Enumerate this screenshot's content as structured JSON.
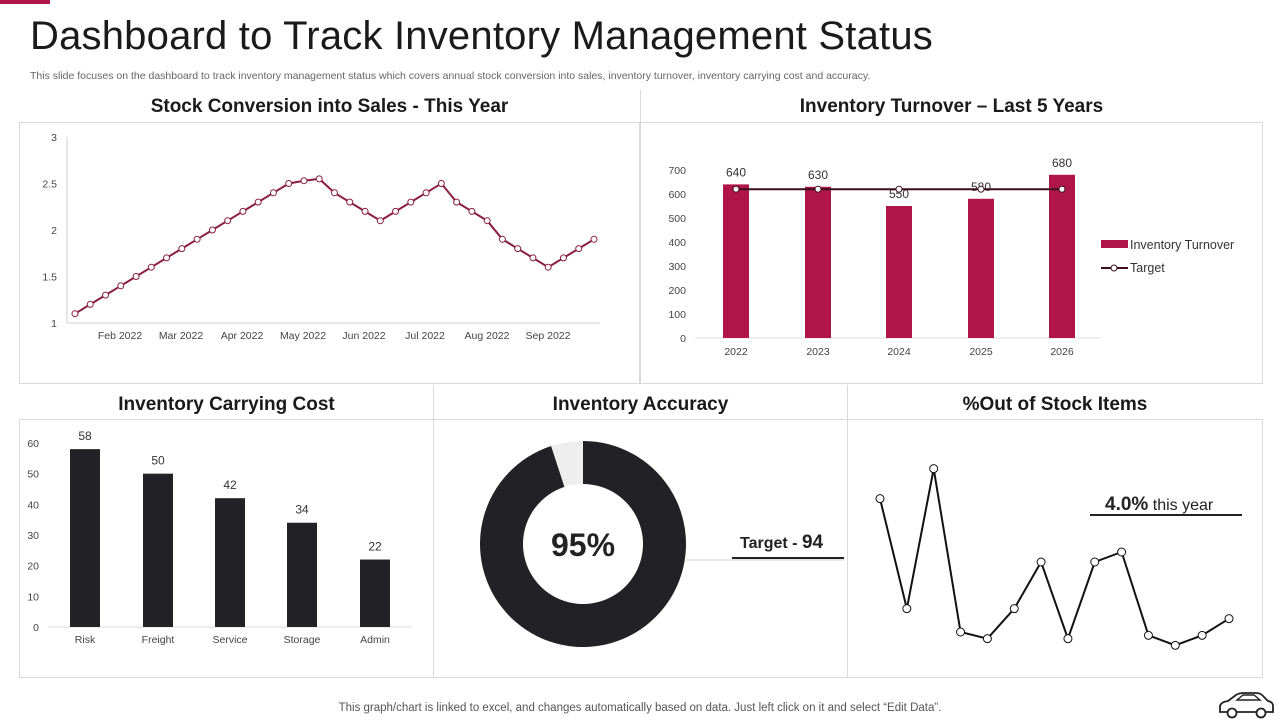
{
  "header": {
    "title": "Dashboard to Track Inventory Management Status",
    "subtitle": "This slide focuses on the dashboard to track inventory management status which covers annual stock conversion into sales, inventory turnover, inventory carrying cost and accuracy."
  },
  "footer": {
    "note": "This graph/chart is linked to excel,  and changes automatically based on data. Just left click on it and select “Edit Data”."
  },
  "colors": {
    "accent": "#b0154a",
    "dark": "#222226",
    "ring_remainder": "#eeeeee"
  },
  "icons": {
    "footer_icon": "car-icon"
  },
  "chart_data": [
    {
      "id": "stock_conversion",
      "type": "line",
      "title": "Stock Conversion into Sales - This Year",
      "yticks": [
        "1",
        "1.5",
        "2",
        "2.5",
        "3"
      ],
      "ylim": [
        1,
        3
      ],
      "xticks": [
        "Feb 2022",
        "Mar 2022",
        "Apr 2022",
        "May 2022",
        "Jun 2022",
        "Jul 2022",
        "Aug 2022",
        "Sep 2022"
      ],
      "values": [
        1.1,
        1.2,
        1.3,
        1.4,
        1.5,
        1.6,
        1.7,
        1.8,
        1.9,
        2.0,
        2.1,
        2.2,
        2.3,
        2.4,
        2.5,
        2.53,
        2.55,
        2.4,
        2.3,
        2.2,
        2.1,
        2.2,
        2.3,
        2.4,
        2.5,
        2.3,
        2.2,
        2.1,
        1.9,
        1.8,
        1.7,
        1.6,
        1.7,
        1.8,
        1.9
      ]
    },
    {
      "id": "inventory_turnover",
      "type": "bar",
      "title": "Inventory Turnover – Last 5 Years",
      "categories": [
        "2022",
        "2023",
        "2024",
        "2025",
        "2026"
      ],
      "series": [
        {
          "name": "Inventory Turnover",
          "values": [
            640,
            630,
            550,
            580,
            680
          ]
        },
        {
          "name": "Target",
          "values": [
            620,
            620,
            620,
            620,
            620
          ]
        }
      ],
      "value_labels": [
        "640",
        "630",
        "550",
        "580",
        "680"
      ],
      "yticks": [
        "0",
        "100",
        "200",
        "300",
        "400",
        "500",
        "600",
        "700"
      ],
      "ylim": [
        0,
        700
      ],
      "legend": [
        "Inventory Turnover",
        "Target"
      ]
    },
    {
      "id": "carrying_cost",
      "type": "bar",
      "title": "Inventory Carrying Cost",
      "categories": [
        "Risk",
        "Freight",
        "Service",
        "Storage",
        "Admin"
      ],
      "values": [
        58,
        50,
        42,
        34,
        22
      ],
      "value_labels": [
        "58",
        "50",
        "42",
        "34",
        "22"
      ],
      "yticks": [
        "0",
        "10",
        "20",
        "30",
        "40",
        "50",
        "60"
      ],
      "ylim": [
        0,
        60
      ]
    },
    {
      "id": "inventory_accuracy",
      "type": "pie",
      "title": "Inventory Accuracy",
      "value": 95,
      "center_label": "95%",
      "target_prefix": "Target - ",
      "target_value": "94"
    },
    {
      "id": "out_of_stock",
      "type": "line",
      "title": "%Out of Stock Items",
      "values": [
        4.1,
        0.8,
        5.0,
        0.1,
        -0.1,
        0.8,
        2.2,
        -0.1,
        2.2,
        2.5,
        0.0,
        -0.3,
        0.0,
        0.5
      ],
      "ylim": [
        -0.5,
        5.5
      ],
      "annotation_value": "4.0%",
      "annotation_suffix": " this year"
    }
  ]
}
